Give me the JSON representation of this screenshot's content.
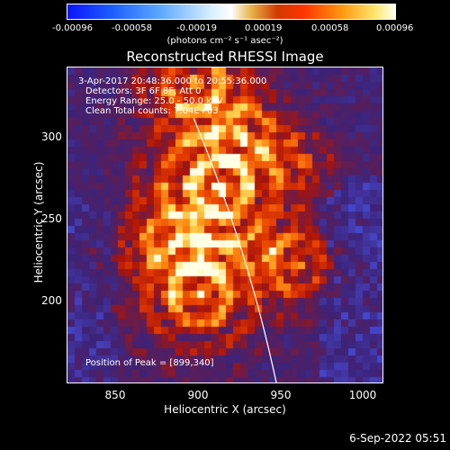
{
  "colorbar": {
    "ticks": [
      "-0.00096",
      "-0.00058",
      "-0.00019",
      "0.00019",
      "0.00058",
      "0.00096"
    ],
    "unit_label": "(photons cm⁻² s⁻¹ asec⁻²)"
  },
  "plot": {
    "title": "Reconstructed RHESSI Image",
    "xlabel": "Heliocentric X (arcsec)",
    "ylabel": "Heliocentric Y (arcsec)",
    "xticks": [
      "850",
      "900",
      "950",
      "1000"
    ],
    "yticks": [
      "300",
      "250",
      "200"
    ],
    "info": {
      "time": "3-Apr-2017 20:48:36.000 to 20:55:36.000",
      "detectors": "Detectors: 3F 6F 8F, Att 0",
      "energy": "Energy Range: 25.0 - 50.0 keV",
      "clean": "Clean     Total counts: 7.04E+03",
      "peak": "Position of Peak = [899,340]"
    }
  },
  "timestamp": "6-Sep-2022 05:51",
  "chart_data": {
    "type": "heatmap",
    "title": "Reconstructed RHESSI Image",
    "xlabel": "Heliocentric X (arcsec)",
    "ylabel": "Heliocentric Y (arcsec)",
    "xlim": [
      820,
      1010
    ],
    "ylim": [
      145,
      335
    ],
    "colorbar_range": [
      -0.00096,
      0.00096
    ],
    "peak_position": [
      899,
      340
    ],
    "colormap": [
      "#0b14ff",
      "#5aa7ff",
      "#ffffff",
      "#d03a00",
      "#ff9a10",
      "#fffff0"
    ]
  }
}
